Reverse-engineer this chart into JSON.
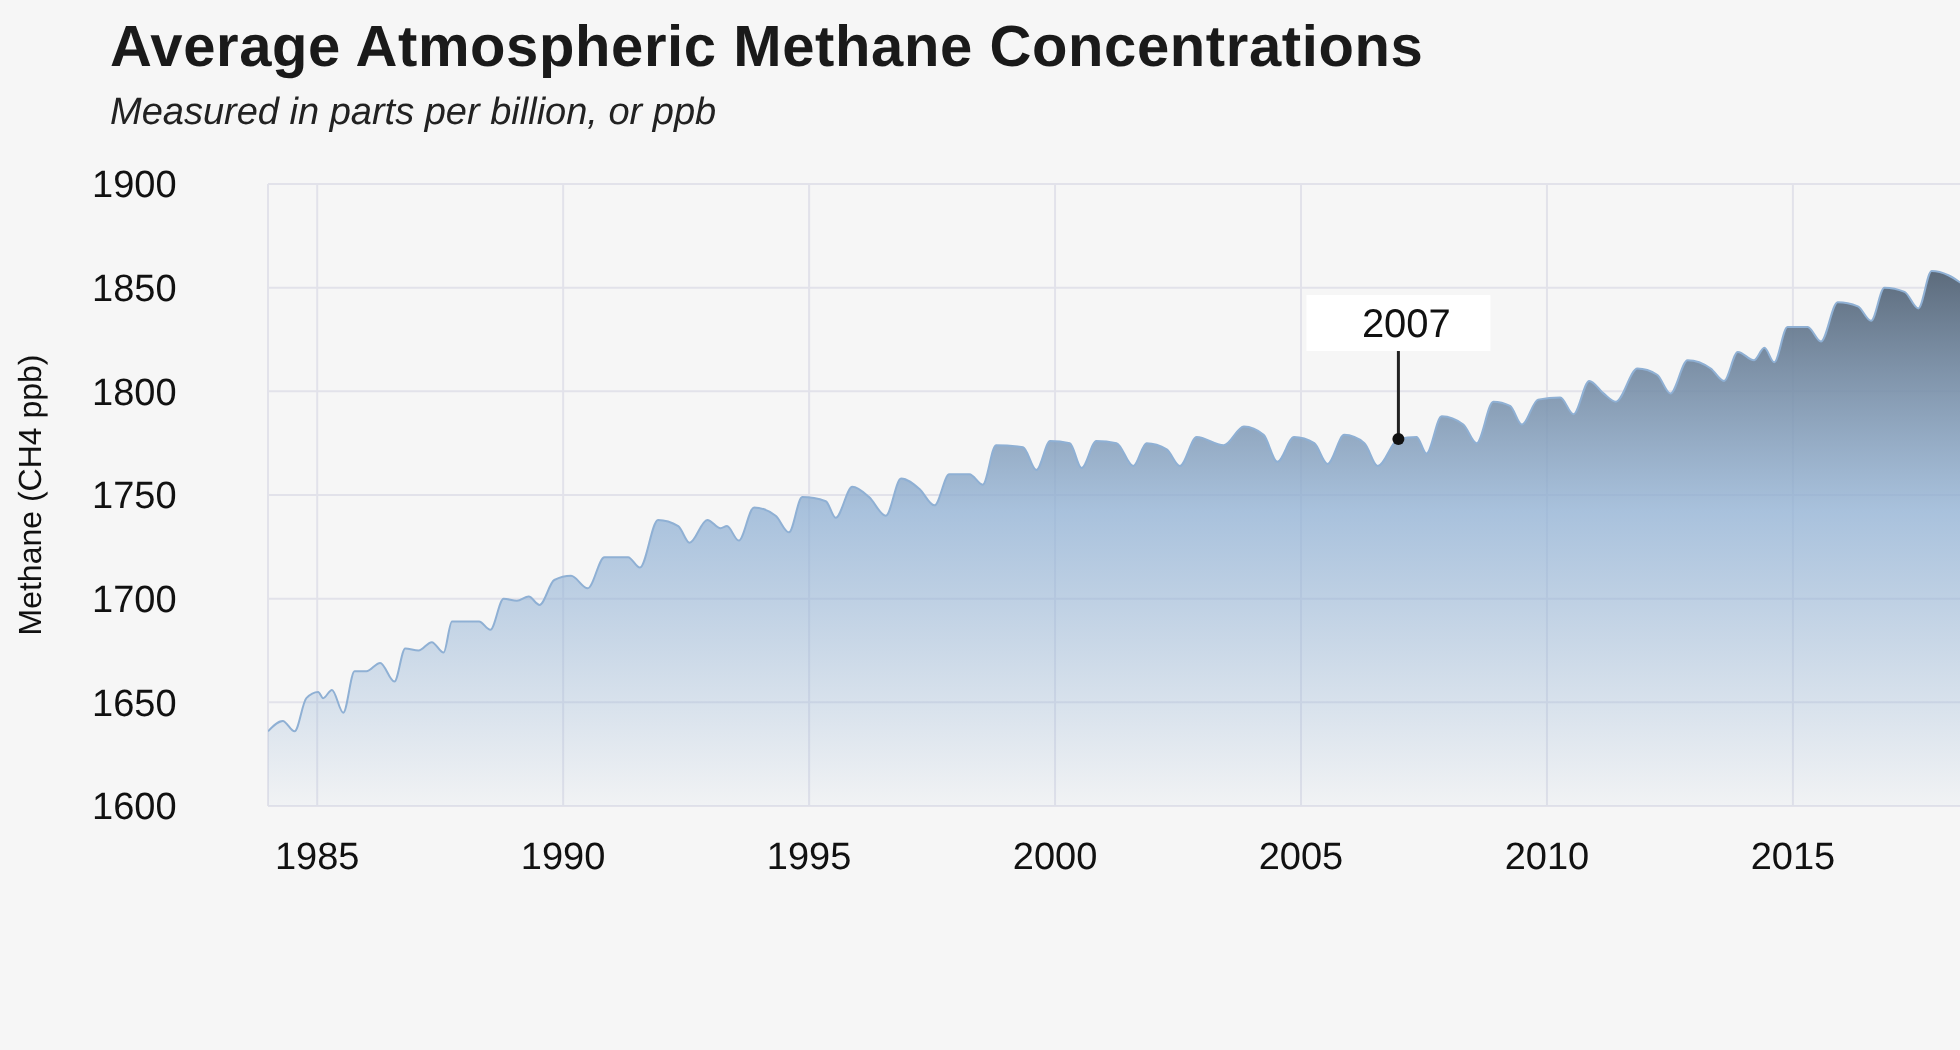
{
  "chart_data": {
    "type": "area",
    "title": "Average Atmospheric Methane Concentrations",
    "subtitle": "Measured in parts per billion, or ppb",
    "ylabel": "Methane (CH4 ppb)",
    "x": [
      1984.0,
      1984.3,
      1984.54,
      1984.78,
      1985.02,
      1985.12,
      1985.3,
      1985.53,
      1985.76,
      1986.0,
      1986.28,
      1986.57,
      1986.79,
      1987.06,
      1987.33,
      1987.57,
      1987.74,
      1988.04,
      1988.29,
      1988.52,
      1988.79,
      1989.06,
      1989.3,
      1989.52,
      1989.82,
      1990.16,
      1990.5,
      1990.84,
      1991.32,
      1991.56,
      1991.93,
      1992.34,
      1992.57,
      1992.93,
      1993.2,
      1993.33,
      1993.57,
      1993.88,
      1994.32,
      1994.59,
      1994.86,
      1995.34,
      1995.54,
      1995.88,
      1996.22,
      1996.56,
      1996.87,
      1997.24,
      1997.55,
      1997.85,
      1998.26,
      1998.53,
      1998.8,
      1999.35,
      1999.62,
      1999.9,
      2000.3,
      2000.54,
      2000.84,
      2001.25,
      2001.59,
      2001.86,
      2002.27,
      2002.54,
      2002.88,
      2003.43,
      2003.84,
      2004.24,
      2004.52,
      2004.86,
      2005.27,
      2005.54,
      2005.88,
      2006.29,
      2006.56,
      2006.98,
      2007.35,
      2007.55,
      2007.86,
      2008.3,
      2008.57,
      2008.91,
      2009.25,
      2009.49,
      2009.82,
      2010.27,
      2010.54,
      2010.86,
      2011.15,
      2011.4,
      2011.84,
      2012.24,
      2012.51,
      2012.86,
      2013.33,
      2013.6,
      2013.88,
      2014.21,
      2014.42,
      2014.62,
      2014.89,
      2015.3,
      2015.57,
      2015.91,
      2016.32,
      2016.59,
      2016.86,
      2017.27,
      2017.55,
      2017.82,
      2018.16,
      2018.43
    ],
    "series": [
      {
        "color": "#8fb0d4",
        "values": [
          1636,
          1641,
          1636,
          1652,
          1655,
          1652,
          1656,
          1645,
          1665,
          1665,
          1669,
          1660,
          1676,
          1675,
          1679,
          1674,
          1689,
          1689,
          1689,
          1685,
          1700,
          1699,
          1701,
          1697,
          1709,
          1711,
          1705,
          1720,
          1720,
          1715,
          1738,
          1735,
          1727,
          1738,
          1734,
          1735,
          1728,
          1744,
          1740,
          1732,
          1749,
          1747,
          1739,
          1754,
          1749,
          1740,
          1758,
          1753,
          1745,
          1760,
          1760,
          1755,
          1774,
          1773,
          1762,
          1776,
          1775,
          1763,
          1776,
          1775,
          1764,
          1775,
          1772,
          1764,
          1778,
          1774,
          1783,
          1779,
          1766,
          1778,
          1775,
          1765,
          1779,
          1775,
          1764,
          1777,
          1778,
          1770,
          1788,
          1784,
          1775,
          1795,
          1793,
          1784,
          1796,
          1797,
          1789,
          1805,
          1799,
          1795,
          1811,
          1808,
          1799,
          1815,
          1811,
          1805,
          1819,
          1815,
          1821,
          1814,
          1831,
          1831,
          1824,
          1843,
          1841,
          1834,
          1850,
          1848,
          1840,
          1858,
          1856,
          1852
        ]
      }
    ],
    "xlim": [
      1984,
      2018.6
    ],
    "ylim": [
      1600,
      1900
    ],
    "xticks": [
      1985,
      1990,
      1995,
      2000,
      2005,
      2010,
      2015
    ],
    "yticks": [
      1600,
      1650,
      1700,
      1750,
      1800,
      1850,
      1900
    ],
    "grid": true,
    "legend": false,
    "annotations": [
      {
        "text": "2007",
        "x": 2006.98,
        "y": 1777
      }
    ]
  }
}
